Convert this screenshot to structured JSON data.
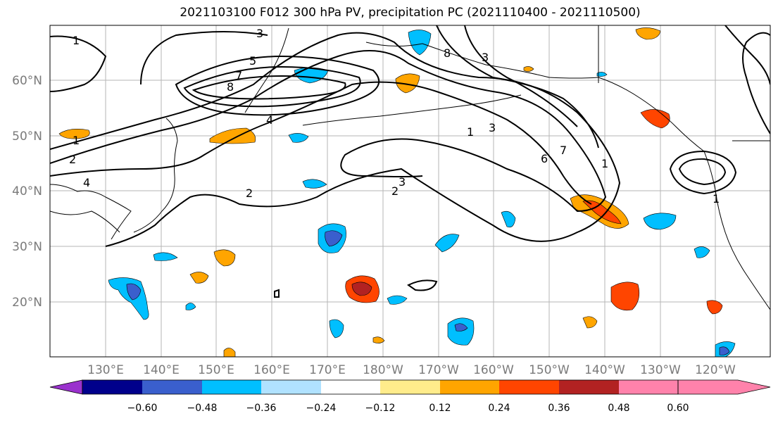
{
  "title": "2021103100 F012 300 hPa PV, precipitation PC (2021110400 - 2021110500)",
  "lat_labels": [
    "60°N",
    "50°N",
    "40°N",
    "30°N",
    "20°N"
  ],
  "lon_labels": [
    "130°E",
    "140°E",
    "150°E",
    "160°E",
    "170°E",
    "180°W",
    "170°W",
    "160°W",
    "150°W",
    "140°W",
    "130°W",
    "120°W"
  ],
  "colorbar": {
    "ticks": [
      "−0.60",
      "−0.48",
      "−0.36",
      "−0.24",
      "−0.12",
      "0.12",
      "0.24",
      "0.36",
      "0.48",
      "0.60"
    ],
    "colors": [
      "#9a32cd",
      "#00008b",
      "#3a5fcd",
      "#00bfff",
      "#b0e2ff",
      "#ffffff",
      "#ffec8b",
      "#ffa500",
      "#ff4500",
      "#b22222",
      "#ff82ab"
    ]
  },
  "contour_labels": [
    "1",
    "3",
    "5",
    "7",
    "8",
    "1",
    "2",
    "4",
    "2",
    "3",
    "2",
    "4",
    "1",
    "3",
    "6",
    "7",
    "1",
    "1",
    "8",
    "3"
  ]
}
